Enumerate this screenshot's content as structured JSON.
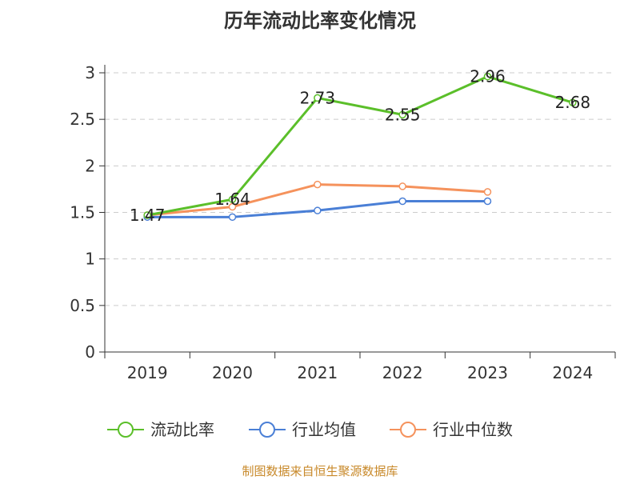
{
  "chart_data": {
    "type": "line",
    "title": "历年流动比率变化情况",
    "categories": [
      "2019",
      "2020",
      "2021",
      "2022",
      "2023",
      "2024"
    ],
    "ylim": [
      0,
      3
    ],
    "yticks": [
      "0",
      "0.5",
      "1",
      "1.5",
      "2",
      "2.5",
      "3"
    ],
    "ytick_values": [
      0,
      0.5,
      1,
      1.5,
      2,
      2.5,
      3
    ],
    "grid": true,
    "legend_position": "bottom",
    "series": [
      {
        "name": "流动比率",
        "color": "#5bbf2a",
        "values": [
          1.47,
          1.64,
          2.73,
          2.55,
          2.96,
          2.68
        ],
        "labels": [
          "1.47",
          "1.64",
          "2.73",
          "2.55",
          "2.96",
          "2.68"
        ]
      },
      {
        "name": "行业均值",
        "color": "#4a7fd6",
        "values": [
          1.45,
          1.45,
          1.52,
          1.62,
          1.62,
          null
        ]
      },
      {
        "name": "行业中位数",
        "color": "#f5925c",
        "values": [
          1.47,
          1.56,
          1.8,
          1.78,
          1.72,
          null
        ]
      }
    ]
  },
  "source": "制图数据来自恒生聚源数据库"
}
